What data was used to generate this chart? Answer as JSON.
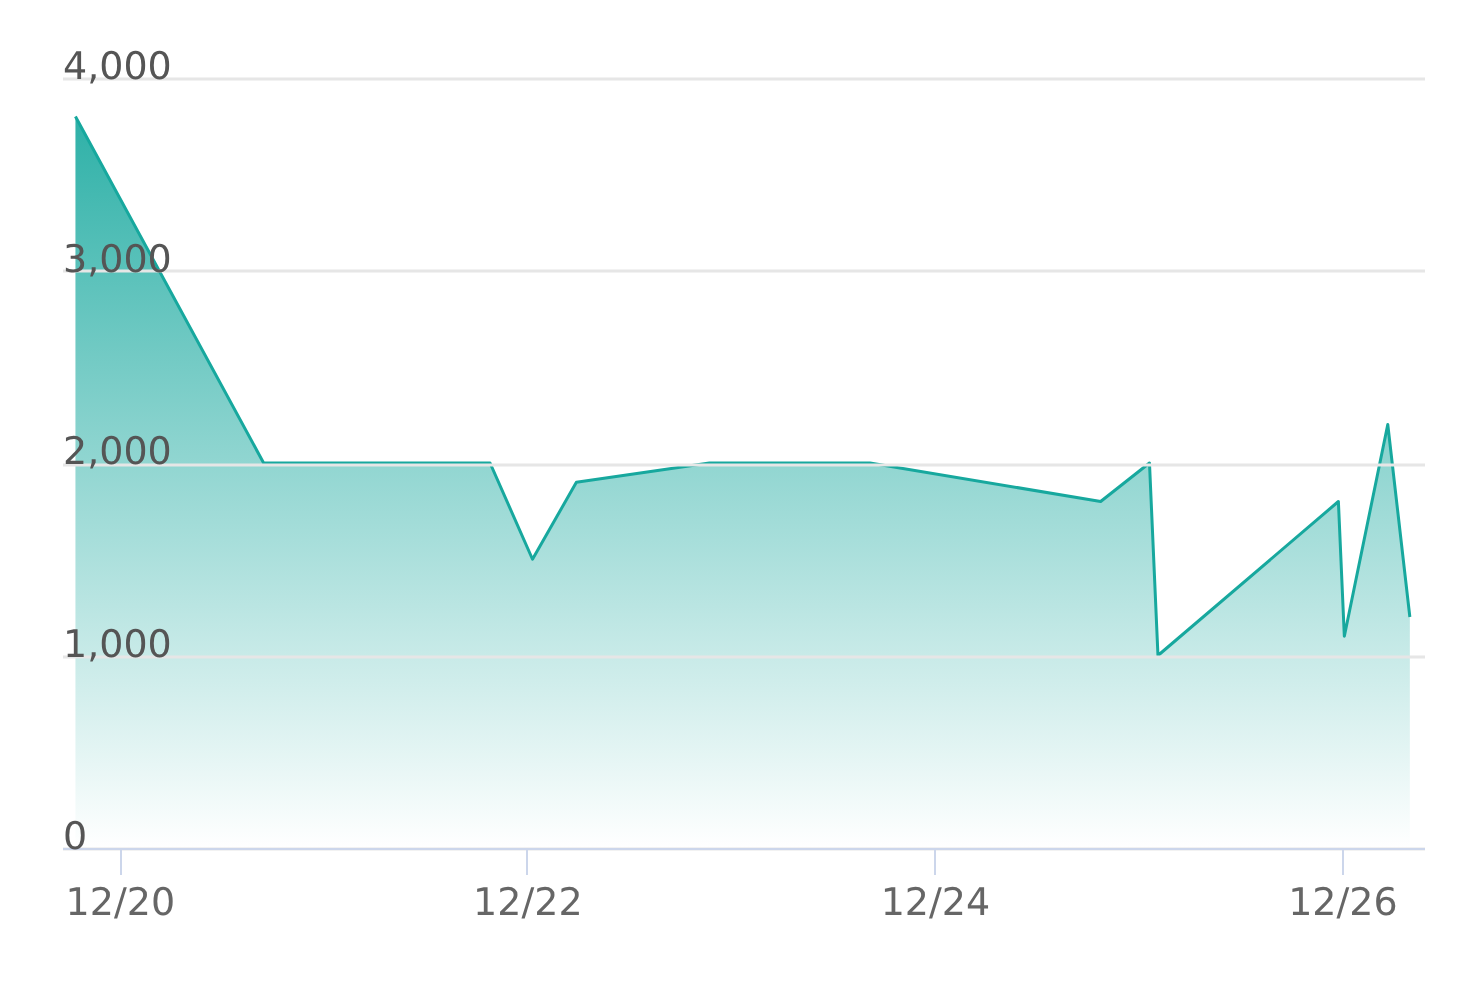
{
  "chart_data": {
    "type": "area",
    "x": [
      "--12-19T18:50",
      "--12-20T17:00",
      "--12-21T19:40",
      "--12-22T00:40",
      "--12-22T05:50",
      "--12-22T21:30",
      "--12-23T16:25",
      "--12-24T19:35",
      "--12-25T01:20",
      "--12-25T02:20",
      "--12-25T23:35",
      "--12-26T00:17",
      "--12-26T05:24",
      "--12-26T08:00"
    ],
    "values": [
      3800,
      2000,
      2000,
      1500,
      1900,
      2000,
      2000,
      1800,
      2000,
      1000,
      1800,
      1100,
      2200,
      1200
    ],
    "color": "#17a89e",
    "xlim": [
      "--12-19T17:15",
      "--12-26T09:40"
    ],
    "xticks": [
      {
        "value": "--12-20",
        "label": "12/20"
      },
      {
        "value": "--12-22",
        "label": "12/22"
      },
      {
        "value": "--12-24",
        "label": "12/24"
      },
      {
        "value": "--12-26",
        "label": "12/26"
      }
    ],
    "ylim": [
      0,
      4000
    ],
    "yticks": [
      0,
      {
        "value": 1000,
        "label": "1,000"
      },
      {
        "value": 2000,
        "label": "2,000"
      },
      {
        "value": 3000,
        "label": "3,000"
      },
      {
        "value": 4000,
        "label": "4,000"
      }
    ],
    "grid": "y"
  }
}
